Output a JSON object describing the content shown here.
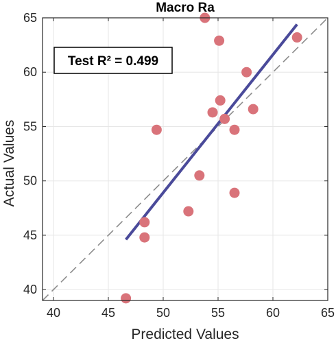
{
  "chart_data": {
    "type": "scatter",
    "title": "Macro Ra",
    "xlabel": "Predicted Values",
    "ylabel": "Actual Values",
    "xlim": [
      39,
      65
    ],
    "ylim": [
      39,
      65
    ],
    "xticks": [
      40,
      45,
      50,
      55,
      60,
      65
    ],
    "yticks": [
      40,
      45,
      50,
      55,
      60,
      65
    ],
    "grid": true,
    "annotation": "Test R² = 0.499",
    "colors": {
      "points": "#d9737a",
      "fit_line": "#4a4a9a",
      "identity_line": "#8c8c8c",
      "grid": "#e6e6e6",
      "axes": "#262626"
    },
    "points": [
      {
        "x": 46.6,
        "y": 39.2
      },
      {
        "x": 48.3,
        "y": 44.8
      },
      {
        "x": 48.3,
        "y": 46.2
      },
      {
        "x": 52.3,
        "y": 47.2
      },
      {
        "x": 56.5,
        "y": 48.9
      },
      {
        "x": 53.3,
        "y": 50.5
      },
      {
        "x": 49.4,
        "y": 54.7
      },
      {
        "x": 56.5,
        "y": 54.7
      },
      {
        "x": 55.6,
        "y": 55.7
      },
      {
        "x": 54.5,
        "y": 56.3
      },
      {
        "x": 58.2,
        "y": 56.6
      },
      {
        "x": 55.2,
        "y": 57.4
      },
      {
        "x": 57.6,
        "y": 60.0
      },
      {
        "x": 55.1,
        "y": 62.9
      },
      {
        "x": 62.2,
        "y": 63.2
      },
      {
        "x": 53.8,
        "y": 65.0
      }
    ],
    "fit_line": [
      [
        46.6,
        44.6
      ],
      [
        62.2,
        64.4
      ]
    ],
    "identity_line": [
      [
        39,
        39
      ],
      [
        65,
        65
      ]
    ]
  }
}
